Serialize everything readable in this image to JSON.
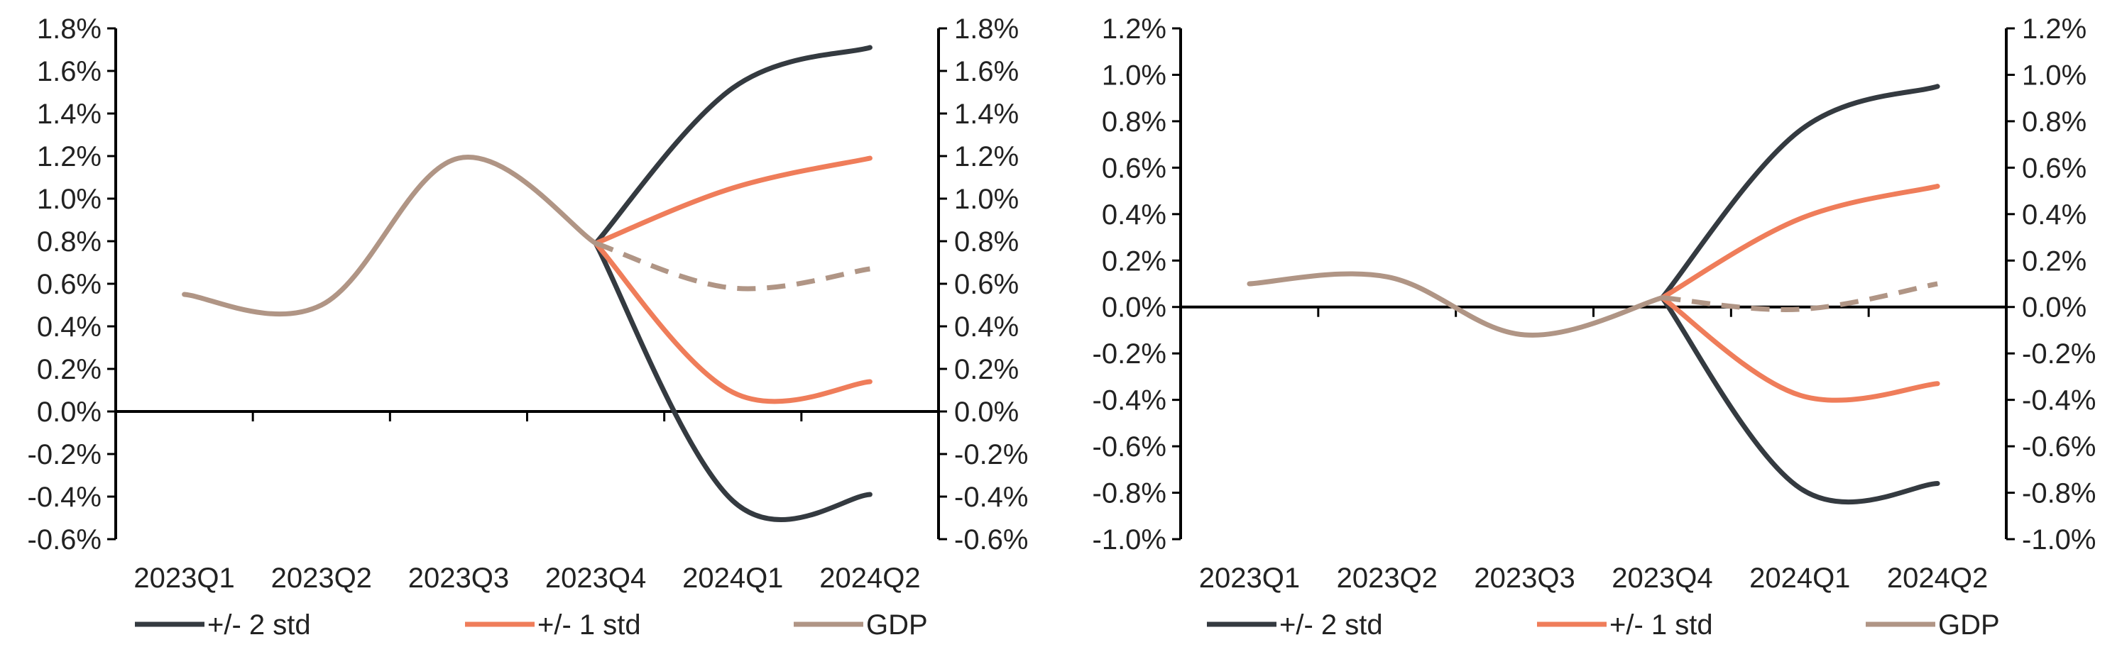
{
  "colors": {
    "std2": "#343a40",
    "std1": "#ef7d5a",
    "gdp": "#b09585",
    "axis": "#000000",
    "text": "#222222"
  },
  "chart_data": [
    {
      "type": "line",
      "categories": [
        "2023Q1",
        "2023Q2",
        "2023Q3",
        "2023Q4",
        "2024Q1",
        "2024Q2"
      ],
      "ylim": [
        -0.6,
        1.8
      ],
      "yticks": [
        "1.8%",
        "1.6%",
        "1.4%",
        "1.2%",
        "1.0%",
        "0.8%",
        "0.6%",
        "0.4%",
        "0.2%",
        "0.0%",
        "-0.2%",
        "-0.4%",
        "-0.6%"
      ],
      "secondary_y_axis": true,
      "legend_position": "bottom",
      "series": [
        {
          "name": "+/- 2 std",
          "color_key": "std2",
          "x": [
            "2023Q4",
            "2024Q1",
            "2024Q2"
          ],
          "values": [
            0.79,
            1.52,
            1.71
          ]
        },
        {
          "color_key": "std2",
          "x": [
            "2023Q4",
            "2024Q1",
            "2024Q2"
          ],
          "values": [
            0.79,
            -0.42,
            -0.39
          ]
        },
        {
          "name": "+/- 1 std",
          "color_key": "std1",
          "x": [
            "2023Q4",
            "2024Q1",
            "2024Q2"
          ],
          "values": [
            0.79,
            1.05,
            1.19
          ]
        },
        {
          "color_key": "std1",
          "x": [
            "2023Q4",
            "2024Q1",
            "2024Q2"
          ],
          "values": [
            0.79,
            0.09,
            0.14
          ]
        },
        {
          "name": "GDP",
          "color_key": "gdp",
          "x": [
            "2023Q1",
            "2023Q2",
            "2023Q3",
            "2023Q4"
          ],
          "values": [
            0.55,
            0.5,
            1.19,
            0.79
          ]
        },
        {
          "color_key": "gdp",
          "dashed": true,
          "x": [
            "2023Q4",
            "2024Q1",
            "2024Q2"
          ],
          "values": [
            0.79,
            0.58,
            0.67
          ]
        }
      ]
    },
    {
      "type": "line",
      "categories": [
        "2023Q1",
        "2023Q2",
        "2023Q3",
        "2023Q4",
        "2024Q1",
        "2024Q2"
      ],
      "ylim": [
        -1.0,
        1.2
      ],
      "yticks": [
        "1.2%",
        "1.0%",
        "0.8%",
        "0.6%",
        "0.4%",
        "0.2%",
        "0.0%",
        "-0.2%",
        "-0.4%",
        "-0.6%",
        "-0.8%",
        "-1.0%"
      ],
      "secondary_y_axis": true,
      "legend_position": "bottom",
      "series": [
        {
          "name": "+/- 2 std",
          "color_key": "std2",
          "x": [
            "2023Q4",
            "2024Q1",
            "2024Q2"
          ],
          "values": [
            0.04,
            0.76,
            0.95
          ]
        },
        {
          "color_key": "std2",
          "x": [
            "2023Q4",
            "2024Q1",
            "2024Q2"
          ],
          "values": [
            0.04,
            -0.78,
            -0.76
          ]
        },
        {
          "name": "+/- 1 std",
          "color_key": "std1",
          "x": [
            "2023Q4",
            "2024Q1",
            "2024Q2"
          ],
          "values": [
            0.04,
            0.38,
            0.52
          ]
        },
        {
          "color_key": "std1",
          "x": [
            "2023Q4",
            "2024Q1",
            "2024Q2"
          ],
          "values": [
            0.04,
            -0.38,
            -0.33
          ]
        },
        {
          "name": "GDP",
          "color_key": "gdp",
          "x": [
            "2023Q1",
            "2023Q2",
            "2023Q3",
            "2023Q4"
          ],
          "values": [
            0.1,
            0.13,
            -0.12,
            0.04
          ]
        },
        {
          "color_key": "gdp",
          "dashed": true,
          "x": [
            "2023Q4",
            "2024Q1",
            "2024Q2"
          ],
          "values": [
            0.04,
            -0.01,
            0.1
          ]
        }
      ]
    }
  ]
}
